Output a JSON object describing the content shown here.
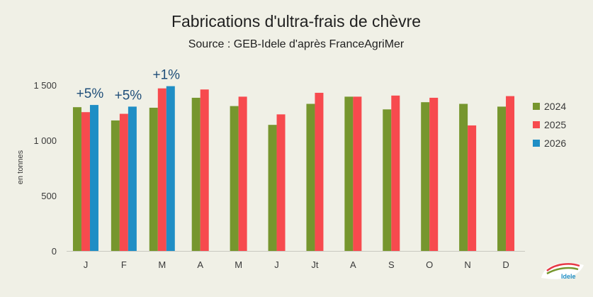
{
  "chart_data": {
    "type": "bar",
    "title": "Fabrications d'ultra-frais de chèvre",
    "subtitle": "Source : GEB-Idele d'après FranceAgriMer",
    "ylabel": "en tonnes",
    "xlabel": "",
    "ylim": [
      0,
      1500
    ],
    "yticks": [
      0,
      500,
      1000,
      1500
    ],
    "ytick_labels": [
      "0",
      "500",
      "1 000",
      "1 500"
    ],
    "grid": false,
    "legend_position": "right",
    "categories": [
      "J",
      "F",
      "M",
      "A",
      "M",
      "J",
      "Jt",
      "A",
      "S",
      "O",
      "N",
      "D"
    ],
    "series": [
      {
        "name": "2024",
        "color": "#76962e",
        "values": [
          1300,
          1180,
          1295,
          1385,
          1310,
          1140,
          1330,
          1395,
          1280,
          1345,
          1330,
          1305
        ]
      },
      {
        "name": "2025",
        "color": "#f74a4e",
        "values": [
          1255,
          1240,
          1470,
          1460,
          1395,
          1235,
          1430,
          1395,
          1405,
          1385,
          1135,
          1400
        ]
      },
      {
        "name": "2026",
        "color": "#1f8ec5",
        "values": [
          1320,
          1305,
          1490,
          null,
          null,
          null,
          null,
          null,
          null,
          null,
          null,
          null
        ]
      }
    ],
    "annotations": [
      {
        "category_index": 0,
        "text": "+5%"
      },
      {
        "category_index": 1,
        "text": "+5%"
      },
      {
        "category_index": 2,
        "text": "+1%"
      }
    ]
  },
  "logo": {
    "text": "Idele",
    "colors": [
      "#e63946",
      "#76962e",
      "#1f8ec5"
    ]
  }
}
